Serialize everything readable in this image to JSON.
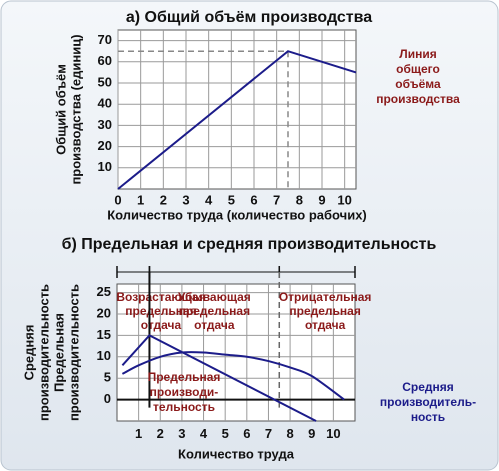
{
  "chart_data": [
    {
      "type": "line",
      "title": "а) Общий объём производства",
      "ylabel": [
        "Общий объём",
        "производства (единиц)"
      ],
      "xlabel": "Количество труда (количество рабочих)",
      "x": [
        0,
        7.5,
        10.5
      ],
      "series": [
        {
          "name": [
            "Линия",
            "общего",
            "объёма",
            "производства"
          ],
          "color": "#1c1c8a",
          "values": [
            0,
            65,
            55
          ]
        }
      ],
      "xlim": [
        0,
        10.5
      ],
      "ylim": [
        0,
        75
      ],
      "xticks": [
        0,
        1,
        2,
        3,
        4,
        5,
        6,
        7,
        8,
        9,
        10
      ],
      "yticks": [
        10,
        20,
        30,
        40,
        50,
        60,
        70
      ],
      "grid": true
    },
    {
      "type": "line",
      "title": "б) Предельная и средняя производительность",
      "ylabel": [
        "Средняя",
        "производительность",
        "Предельная",
        "производительность"
      ],
      "xlabel": "Количество труда",
      "regions": [
        {
          "labels": [
            "Возрастающая",
            "предельная",
            "отдача"
          ],
          "xlim": [
            0,
            1.5
          ]
        },
        {
          "labels": [
            "Убывающая",
            "предельная",
            "отдача"
          ],
          "xlim": [
            1.5,
            7.5
          ]
        },
        {
          "labels": [
            "Отрицательная",
            "предельная",
            "отдача"
          ],
          "xlim": [
            7.5,
            11
          ]
        }
      ],
      "series": [
        {
          "name": [
            "Предельная",
            "производи-",
            "тельность"
          ],
          "color": "#1c1c8a",
          "x": [
            0.25,
            1.5,
            9.2
          ],
          "values": [
            8,
            15,
            -5
          ]
        },
        {
          "name": [
            "Средняя",
            "производитель-",
            "ность"
          ],
          "color": "#1c1c8a",
          "x": [
            0.25,
            1,
            2,
            3,
            4,
            5,
            6,
            7,
            8,
            9,
            10.5
          ],
          "values": [
            6,
            8,
            10,
            11,
            11,
            10.5,
            10,
            9,
            7.5,
            5.5,
            0
          ]
        }
      ],
      "xlim": [
        0,
        11
      ],
      "ylim": [
        -5,
        27
      ],
      "xticks": [
        1,
        2,
        3,
        4,
        5,
        6,
        7,
        8,
        9,
        10
      ],
      "yticks": [
        0,
        5,
        10,
        15,
        20,
        25
      ],
      "grid": true
    }
  ]
}
